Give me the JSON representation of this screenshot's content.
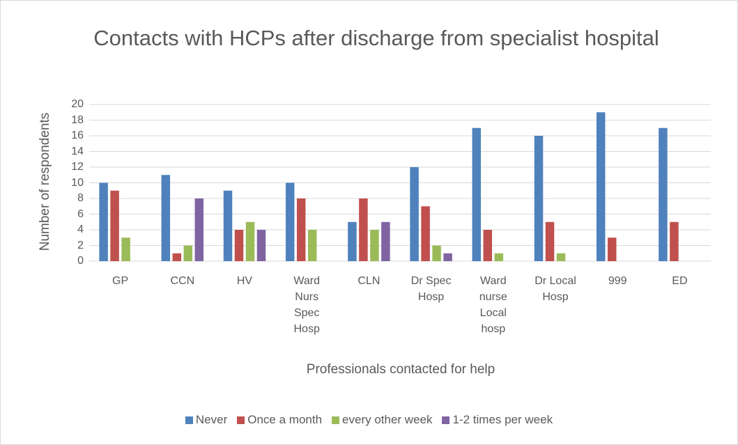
{
  "chart_data": {
    "type": "bar",
    "title": "Contacts with HCPs after discharge from specialist hospital",
    "x_label": "Professionals contacted for help",
    "y_label": "Number of respondents",
    "categories": [
      "GP",
      "CCN",
      "HV",
      "Ward Nurs Spec Hosp",
      "CLN",
      "Dr Spec Hosp",
      "Ward nurse Local hosp",
      "Dr Local Hosp",
      "999",
      "ED"
    ],
    "series": [
      {
        "name": "Never",
        "color": "#4f81bd",
        "values": [
          10,
          11,
          9,
          10,
          5,
          12,
          17,
          16,
          19,
          17
        ]
      },
      {
        "name": "Once a month",
        "color": "#c0504d",
        "values": [
          9,
          1,
          4,
          8,
          8,
          7,
          4,
          5,
          3,
          5
        ]
      },
      {
        "name": "every other week",
        "color": "#9bbb59",
        "values": [
          3,
          2,
          5,
          4,
          4,
          2,
          1,
          1,
          0,
          0
        ]
      },
      {
        "name": "1-2 times per week",
        "color": "#8064a2",
        "values": [
          0,
          8,
          4,
          0,
          5,
          1,
          0,
          0,
          0,
          0
        ]
      }
    ],
    "ylim": [
      0,
      20
    ],
    "yticks": [
      0,
      2,
      4,
      6,
      8,
      10,
      12,
      14,
      16,
      18,
      20
    ],
    "grid": true,
    "legend": "bottom"
  }
}
